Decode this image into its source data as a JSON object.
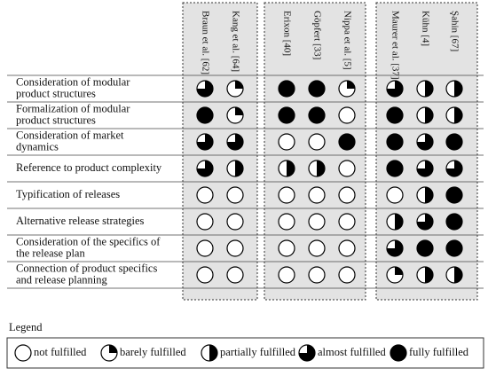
{
  "groups": [
    [
      "Braun et al. [62]",
      "Kang et al. [64]"
    ],
    [
      "Erixon [40]",
      "Göpfert [33]",
      "Nippa et al. [5]"
    ],
    [
      "Maurer et al. [37]",
      "Kühn [4]",
      "Şahin [67]"
    ]
  ],
  "rows": [
    {
      "label": [
        "Consideration of modular",
        "product structures"
      ],
      "values": [
        3,
        1,
        4,
        4,
        1,
        3,
        2,
        2
      ]
    },
    {
      "label": [
        "Formalization of modular",
        "product structures"
      ],
      "values": [
        4,
        1,
        4,
        4,
        0,
        4,
        2,
        2
      ]
    },
    {
      "label": [
        "Consideration of market",
        "dynamics"
      ],
      "values": [
        3,
        3,
        0,
        0,
        4,
        4,
        3,
        4
      ]
    },
    {
      "label": [
        "Reference to product complexity"
      ],
      "values": [
        3,
        2,
        2,
        2,
        0,
        4,
        3,
        3
      ]
    },
    {
      "label": [
        "Typification of releases"
      ],
      "values": [
        0,
        0,
        0,
        0,
        0,
        0,
        2,
        4
      ]
    },
    {
      "label": [
        "Alternative release strategies"
      ],
      "values": [
        0,
        0,
        0,
        0,
        0,
        2,
        3,
        4
      ]
    },
    {
      "label": [
        "Consideration of the specifics of",
        "the release plan"
      ],
      "values": [
        0,
        0,
        0,
        0,
        0,
        3,
        4,
        4
      ]
    },
    {
      "label": [
        "Connection of product specifics",
        "and release planning"
      ],
      "values": [
        0,
        0,
        0,
        0,
        0,
        1,
        2,
        2
      ]
    }
  ],
  "legend": {
    "title": "Legend",
    "items": [
      "not fulfilled",
      "barely fulfilled",
      "partially fulfilled",
      "almost fulfilled",
      "fully fulfilled"
    ]
  }
}
